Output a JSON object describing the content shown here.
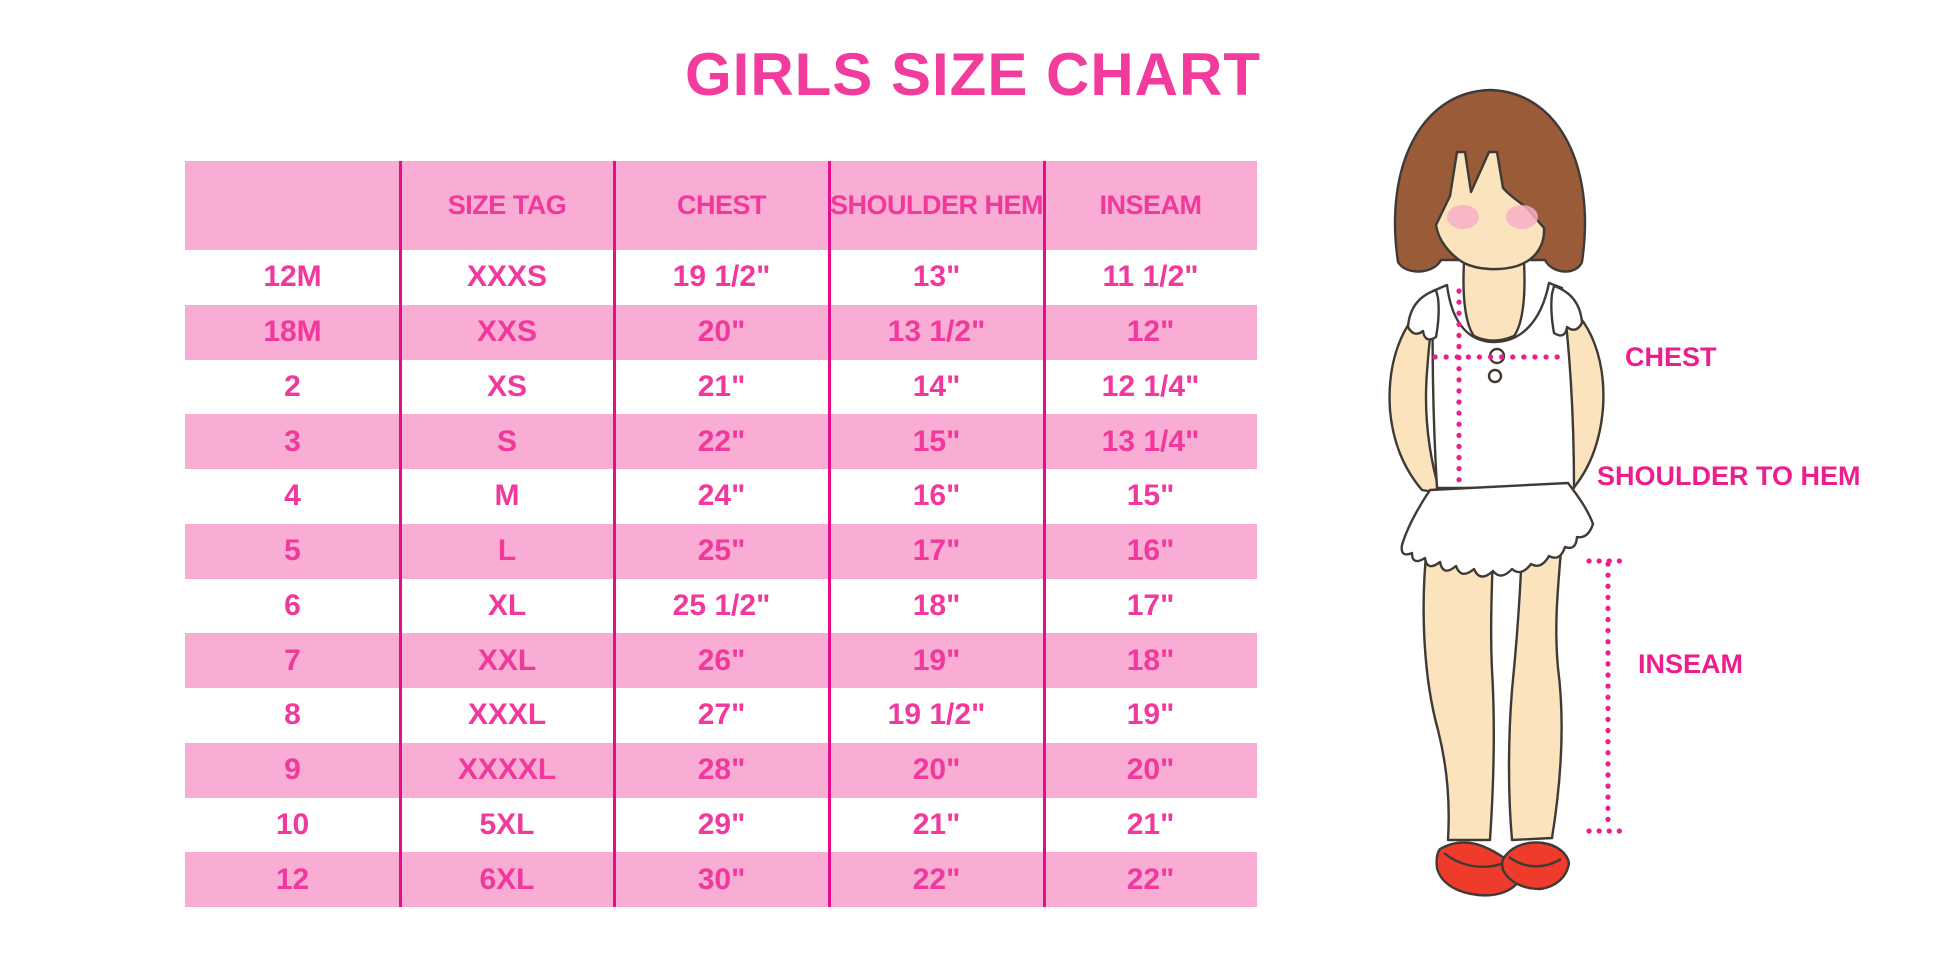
{
  "title": "GIRLS SIZE CHART",
  "chart_data": {
    "type": "table",
    "title": "GIRLS SIZE CHART",
    "columns": [
      "",
      "SIZE TAG",
      "CHEST",
      "SHOULDER HEM",
      "INSEAM"
    ],
    "rows": [
      [
        "12M",
        "XXXS",
        "19 1/2\"",
        "13\"",
        "11 1/2\""
      ],
      [
        "18M",
        "XXS",
        "20\"",
        "13 1/2\"",
        "12\""
      ],
      [
        "2",
        "XS",
        "21\"",
        "14\"",
        "12 1/4\""
      ],
      [
        "3",
        "S",
        "22\"",
        "15\"",
        "13 1/4\""
      ],
      [
        "4",
        "M",
        "24\"",
        "16\"",
        "15\""
      ],
      [
        "5",
        "L",
        "25\"",
        "17\"",
        "16\""
      ],
      [
        "6",
        "XL",
        "25 1/2\"",
        "18\"",
        "17\""
      ],
      [
        "7",
        "XXL",
        "26\"",
        "19\"",
        "18\""
      ],
      [
        "8",
        "XXXL",
        "27\"",
        "19 1/2\"",
        "19\""
      ],
      [
        "9",
        "XXXXL",
        "28\"",
        "20\"",
        "20\""
      ],
      [
        "10",
        "5XL",
        "29\"",
        "21\"",
        "21\""
      ],
      [
        "12",
        "6XL",
        "30\"",
        "22\"",
        "22\""
      ]
    ],
    "layout_hints": "header row pink, data rows alternate white/pink starting white; 4 magenta vertical column separators; no horizontal lines"
  },
  "diagram": {
    "chest_label": "CHEST",
    "shoulder_to_hem_label": "SHOULDER TO HEM",
    "inseam_label": "INSEAM"
  },
  "colors": {
    "title_pink": "#F13C9D",
    "row_band_pink": "#F9ACD4",
    "table_text_pink": "#F0389D",
    "separator_magenta": "#E60D8A",
    "label_magenta": "#EC1E8E",
    "hair_brown": "#9A5B39",
    "skin": "#FBE3BD",
    "blush_pink": "#F6AFC6",
    "shoe_red": "#EE3B2B"
  }
}
